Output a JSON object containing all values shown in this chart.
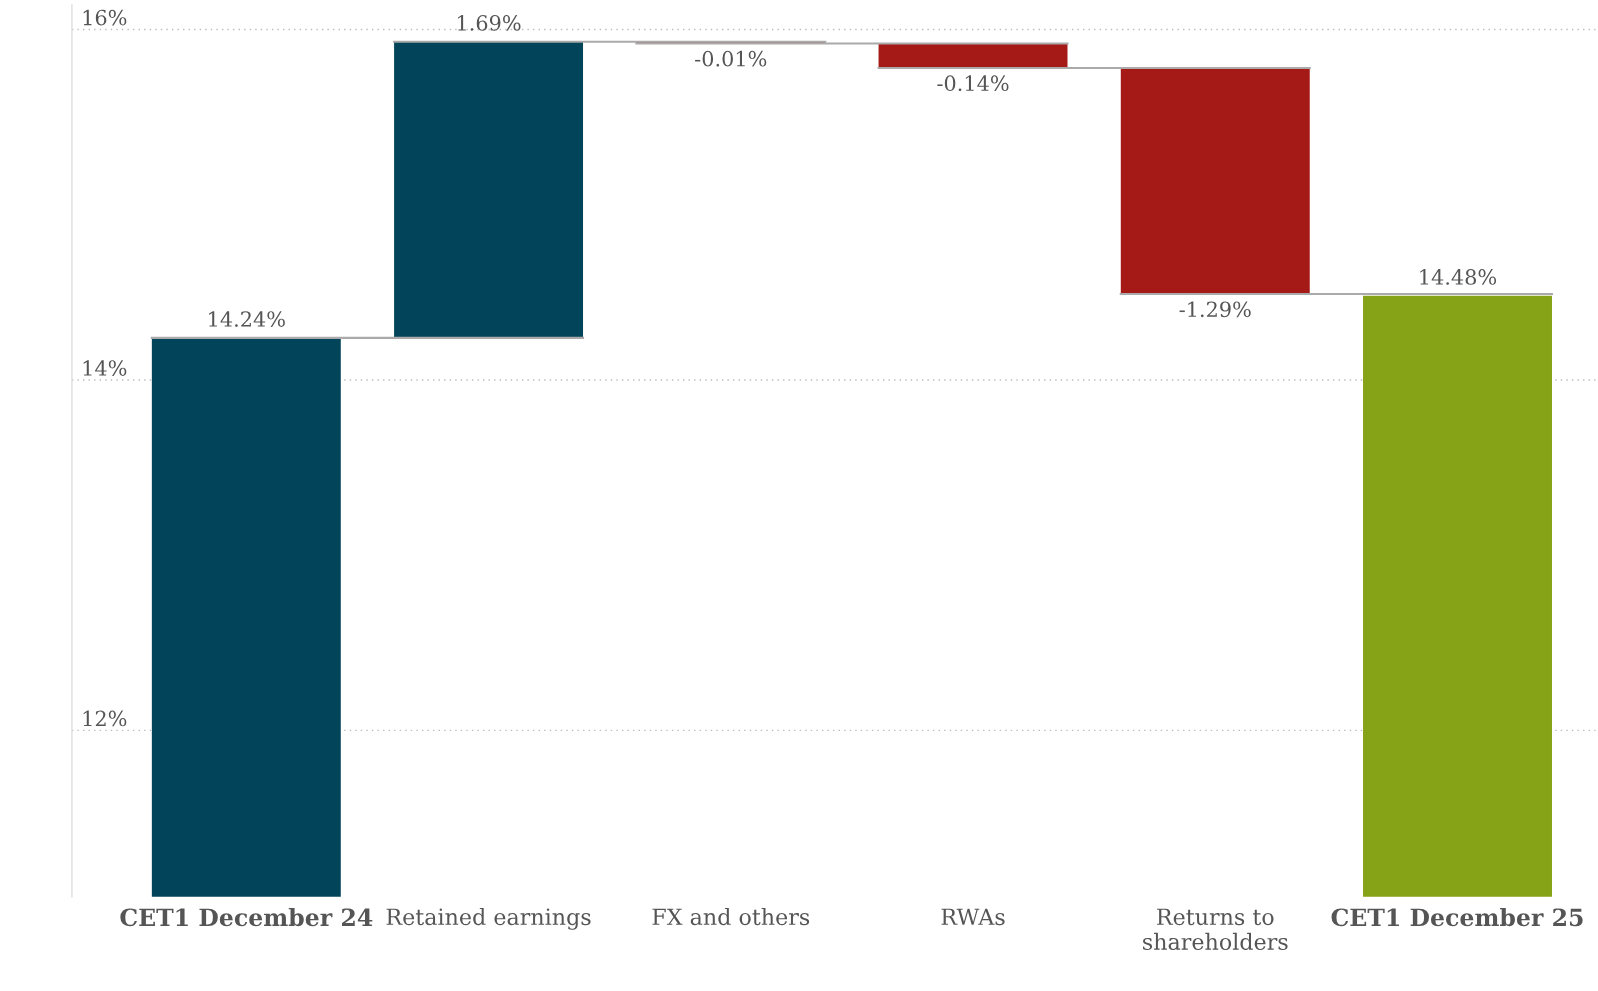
{
  "chart_data": {
    "type": "bar",
    "categories": [
      "CET1 December 24",
      "Retained earnings",
      "FX and others",
      "RWAs",
      "Returns to\nshareholders",
      "CET1 December 25"
    ],
    "values": [
      14.24,
      1.69,
      -0.01,
      -0.14,
      -1.29,
      14.48
    ],
    "base": [
      null,
      14.24,
      15.93,
      15.92,
      15.78,
      null
    ],
    "colors": [
      "#02445a",
      "#02445a",
      "#a51916",
      "#a51916",
      "#a51916",
      "#86a216"
    ],
    "value_labels": [
      "14.24%",
      "1.69%",
      "-0.01%",
      "-0.14%",
      "-1.29%",
      "14.48%"
    ],
    "ylim": [
      11.05,
      16.14
    ],
    "yticks": [
      {
        "value": 12,
        "label": "12%"
      },
      {
        "value": 14,
        "label": "14%"
      },
      {
        "value": 16,
        "label": "16%"
      }
    ],
    "grid": "y"
  }
}
